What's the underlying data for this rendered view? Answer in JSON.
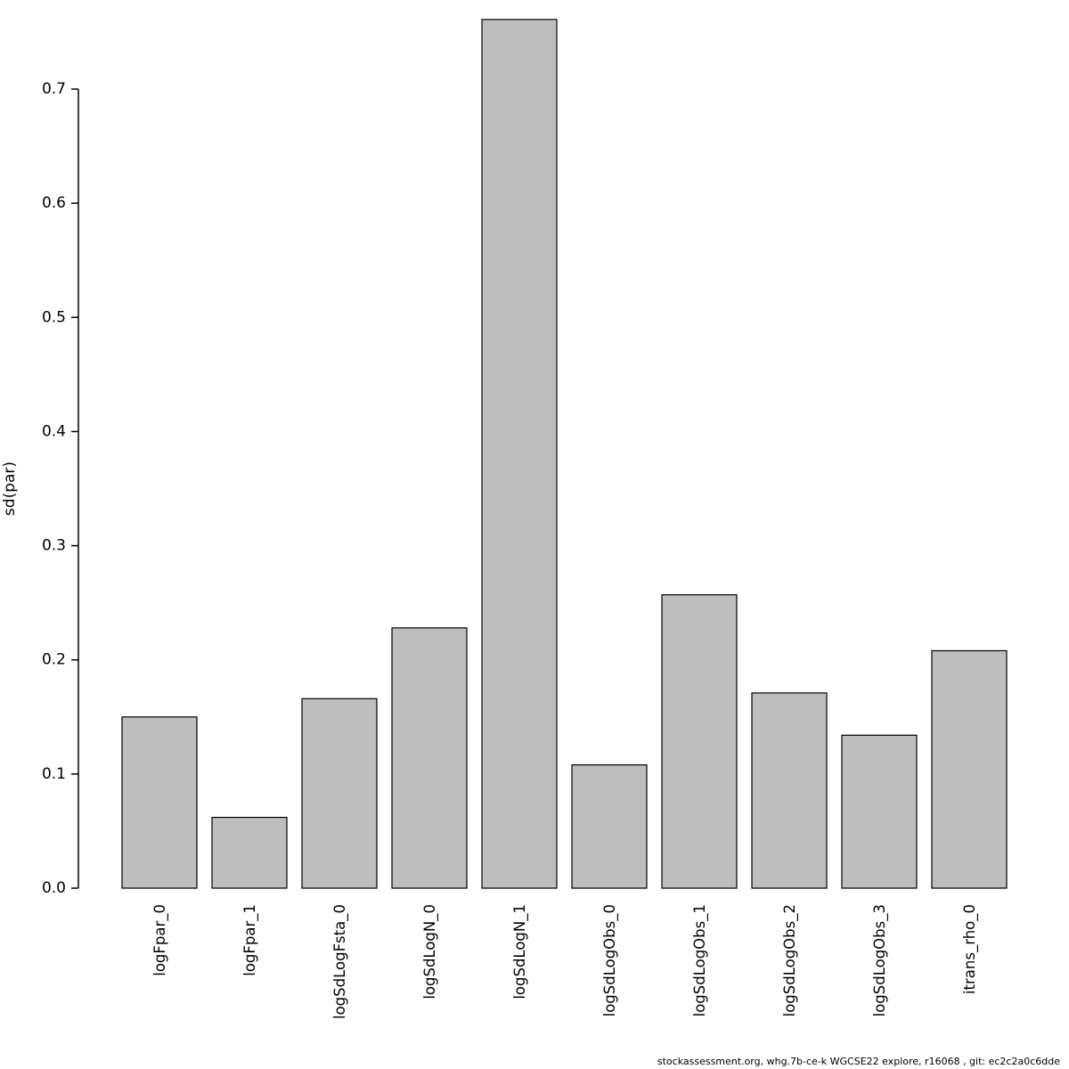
{
  "chart_data": {
    "type": "bar",
    "title": "",
    "categories": [
      "logFpar_0",
      "logFpar_1",
      "logSdLogFsta_0",
      "logSdLogN_0",
      "logSdLogN_1",
      "logSdLogObs_0",
      "logSdLogObs_1",
      "logSdLogObs_2",
      "logSdLogObs_3",
      "itrans_rho_0"
    ],
    "values": [
      0.15,
      0.062,
      0.166,
      0.228,
      0.761,
      0.108,
      0.257,
      0.171,
      0.134,
      0.208
    ],
    "xlabel": "",
    "ylabel": "sd(par)",
    "ylim": [
      0,
      0.7
    ],
    "yticks": [
      0.0,
      0.1,
      0.2,
      0.3,
      0.4,
      0.5,
      0.6,
      0.7
    ],
    "bar_color": "#bebebe",
    "bar_border_color": "#000000",
    "axis_color": "#000000",
    "grid": false,
    "legend_position": "none"
  },
  "footer": {
    "text": "stockassessment.org, whg.7b-ce-k  WGCSE22  explore, r16068 , git: ec2c2a0c6dde"
  }
}
